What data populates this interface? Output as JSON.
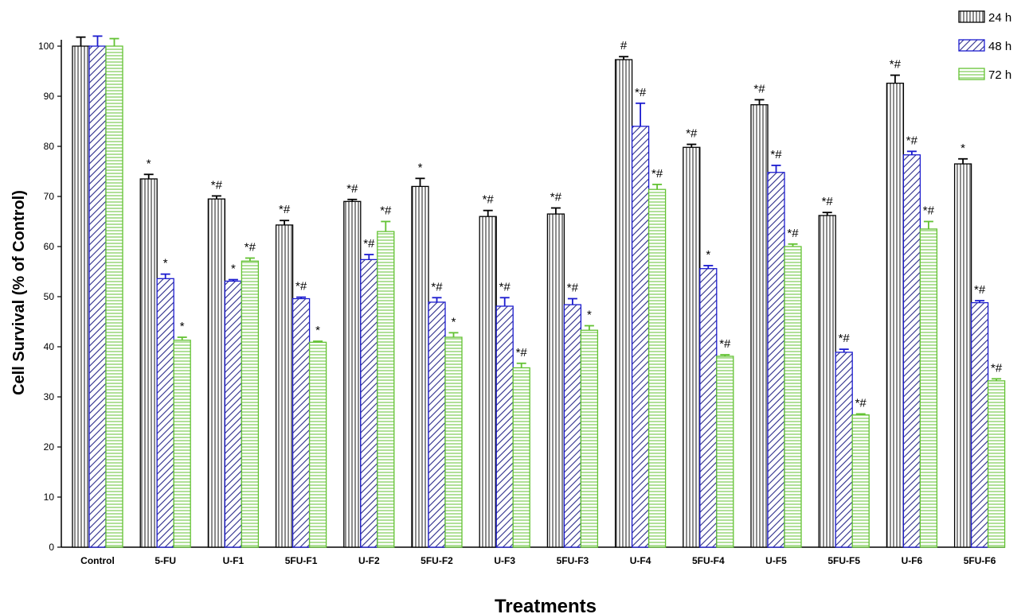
{
  "chart_data": {
    "type": "bar",
    "xlabel": "Treatments",
    "ylabel": "Cell Survival (% of Control)",
    "ylim": [
      0,
      105
    ],
    "yticks": [
      "0",
      "10",
      "20",
      "30",
      "40",
      "50",
      "60",
      "70",
      "80",
      "90",
      "100"
    ],
    "categories": [
      "Control",
      "5-FU",
      "U-F1",
      "5FU-F1",
      "U-F2",
      "5FU-F2",
      "U-F3",
      "5FU-F3",
      "U-F4",
      "5FU-F4",
      "U-F5",
      "5FU-F5",
      "U-F6",
      "5FU-F6"
    ],
    "grid": false,
    "legend_position": "top-right",
    "series": [
      {
        "name": "24 h",
        "color": "#000000",
        "pattern": "vertical-lines",
        "values": [
          100,
          73.5,
          69.5,
          64.3,
          69,
          72,
          66,
          66.5,
          97.3,
          79.8,
          88.3,
          66.2,
          92.6,
          76.5
        ],
        "errors": [
          1.8,
          0.9,
          0.6,
          0.9,
          0.4,
          1.6,
          1.2,
          1.2,
          0.6,
          0.6,
          1.0,
          0.6,
          1.6,
          1.0
        ],
        "annotations": [
          "",
          "*",
          "*#",
          "*#",
          "*#",
          "*",
          "*#",
          "*#",
          "#",
          "*#",
          "*#",
          "*#",
          "*#",
          "*"
        ]
      },
      {
        "name": "48 h",
        "color": "#1c1ccf",
        "pattern": "diagonal-lines",
        "values": [
          100,
          53.6,
          53.1,
          49.6,
          57.4,
          48.9,
          48.1,
          48.4,
          84,
          55.6,
          74.8,
          38.9,
          78.3,
          48.8
        ],
        "errors": [
          2.0,
          0.9,
          0.3,
          0.3,
          1.0,
          0.9,
          1.7,
          1.2,
          4.6,
          0.6,
          1.4,
          0.6,
          0.7,
          0.4
        ],
        "annotations": [
          "",
          "*",
          "*",
          "*#",
          "*#",
          "*#",
          "*#",
          "*#",
          "*#",
          "*",
          "*#",
          "*#",
          "*#",
          "*#"
        ]
      },
      {
        "name": "72 h",
        "color": "#63c233",
        "pattern": "horizontal-lines",
        "values": [
          100,
          41.3,
          57.1,
          40.9,
          63,
          41.9,
          35.8,
          43.3,
          71.4,
          38.1,
          60,
          26.4,
          63.5,
          33.2
        ],
        "errors": [
          1.5,
          0.6,
          0.6,
          0.2,
          2.0,
          0.9,
          0.9,
          0.9,
          1.0,
          0.3,
          0.5,
          0.2,
          1.5,
          0.4
        ],
        "annotations": [
          "",
          "*",
          "*#",
          "*",
          "*#",
          "*",
          "*#",
          "*",
          "*#",
          "*#",
          "*#",
          "*#",
          "*#",
          "*#"
        ]
      }
    ]
  }
}
